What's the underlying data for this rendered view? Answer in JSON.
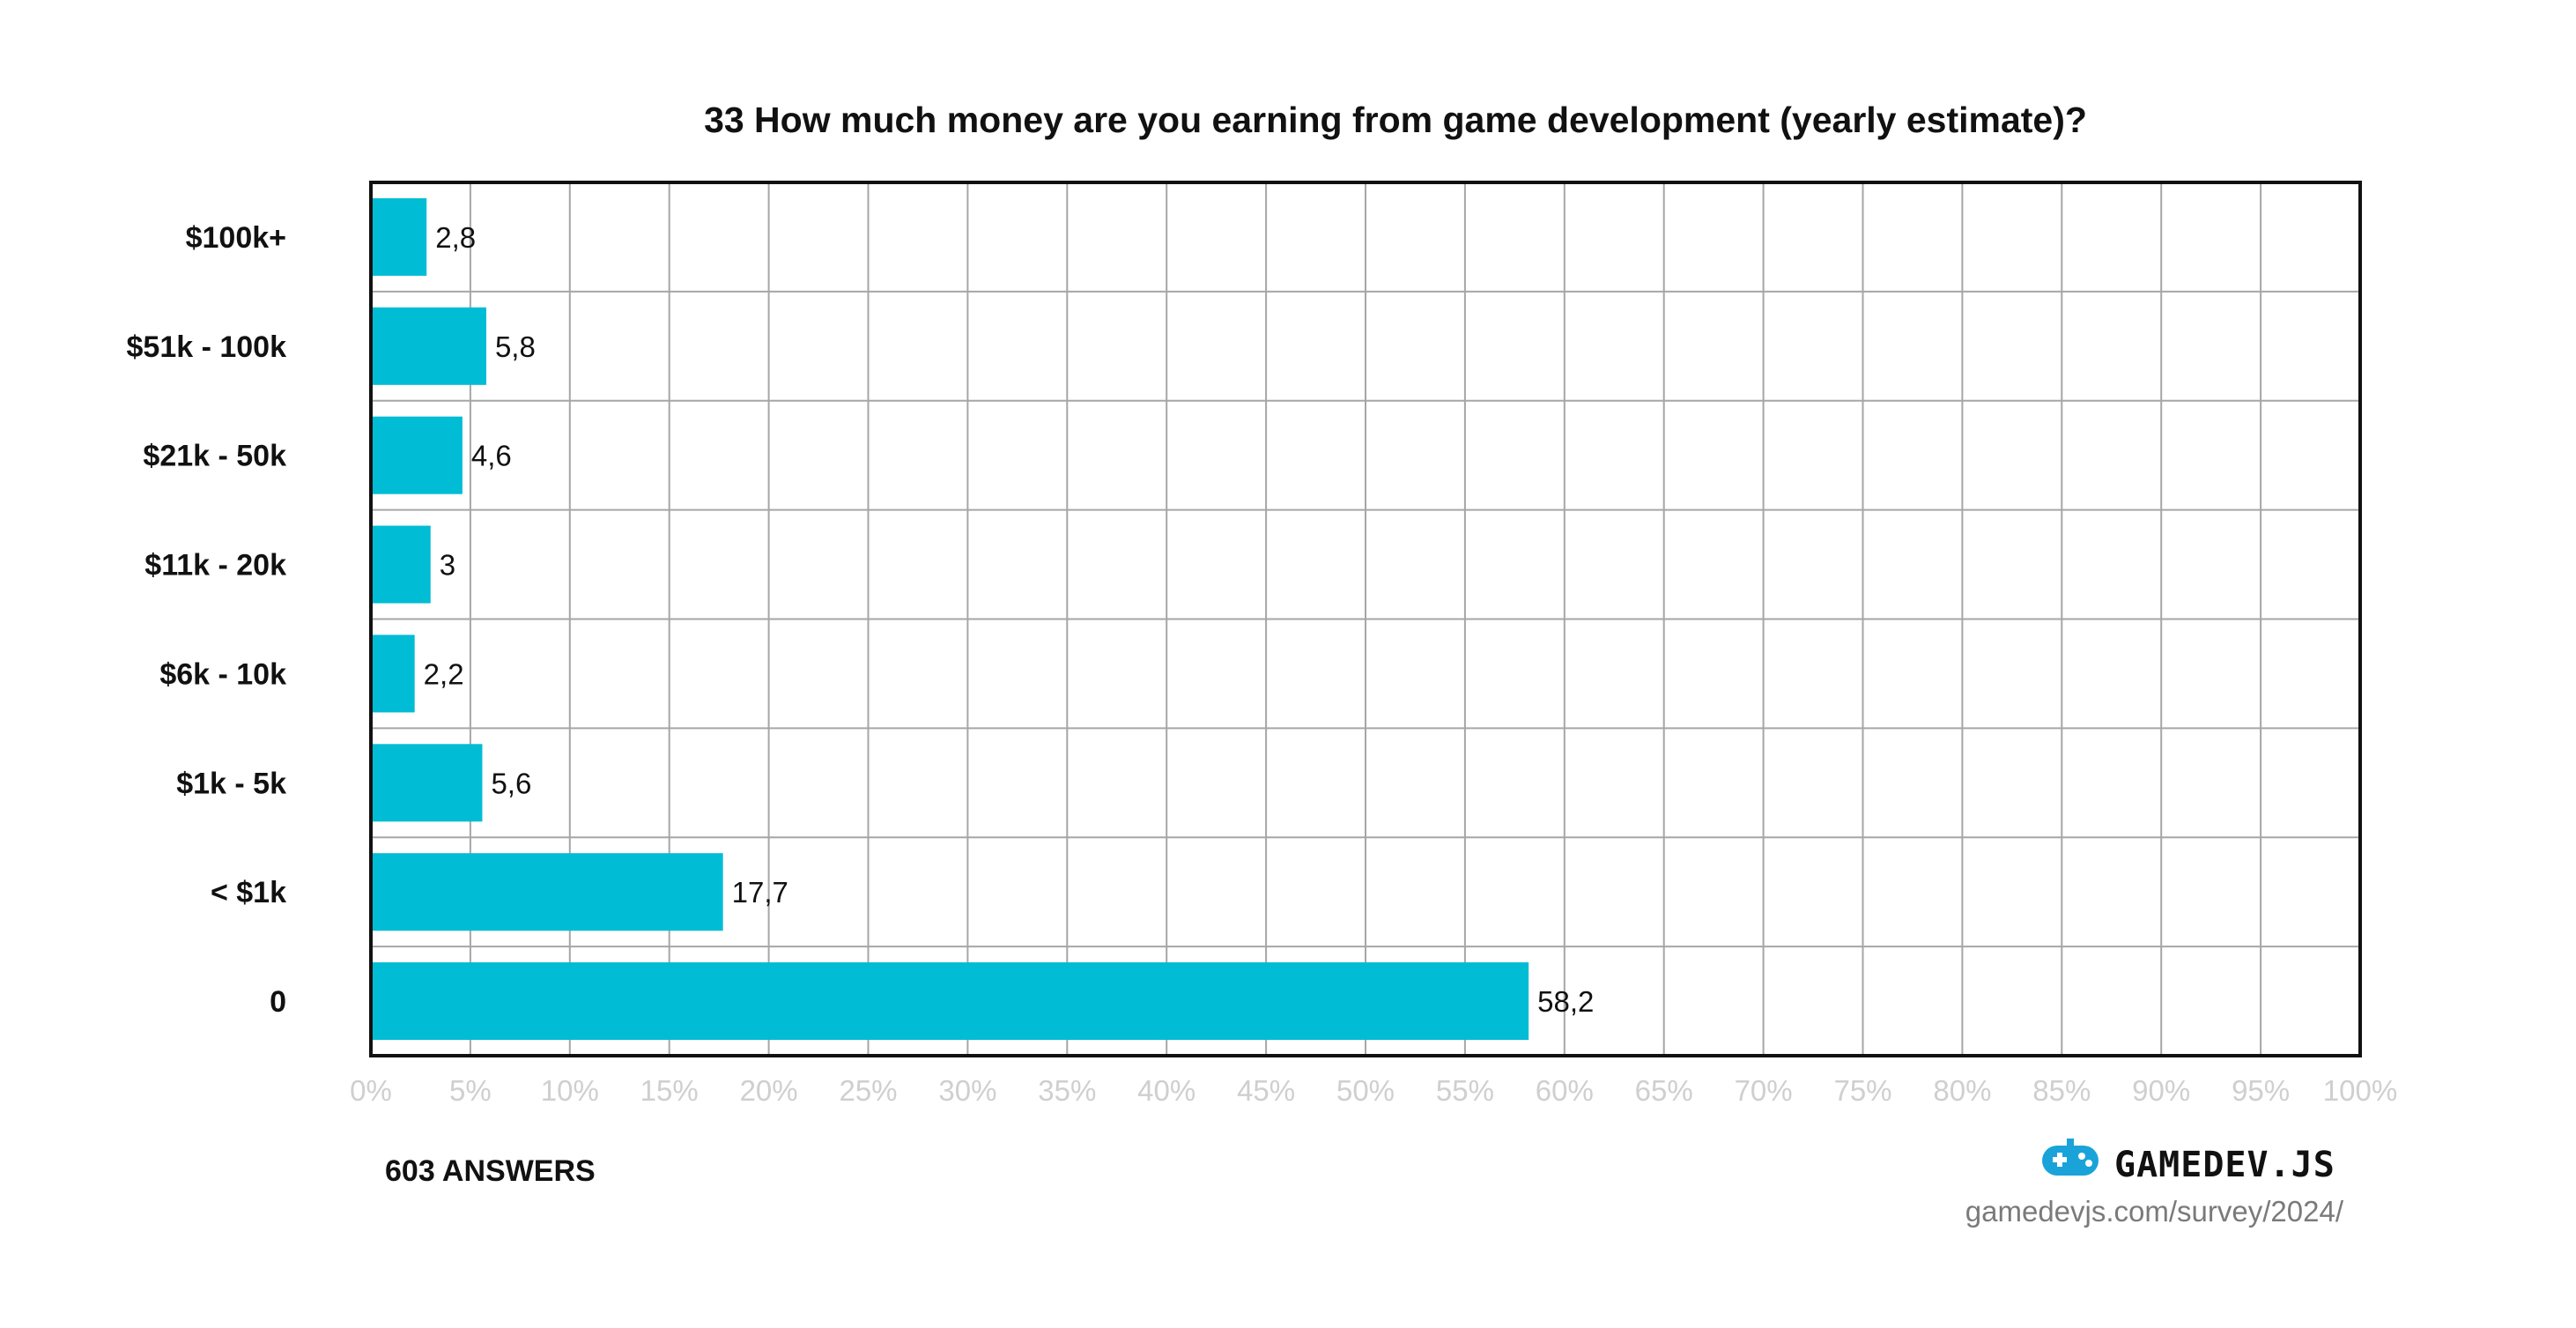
{
  "colors": {
    "bar": "#00bcd4",
    "grid": "#a6a6a6",
    "frame": "#111111",
    "tick_text": "#cfcfcf",
    "brand_icon": "#1aa3d9"
  },
  "chart_data": {
    "type": "bar",
    "orientation": "horizontal",
    "title": "33 How much money are you earning from game development (yearly estimate)?",
    "categories": [
      "$100k+",
      "$51k - 100k",
      "$21k - 50k",
      "$11k - 20k",
      "$6k - 10k",
      "$1k - 5k",
      "< $1k",
      "0"
    ],
    "values": [
      2.8,
      5.8,
      4.6,
      3,
      2.2,
      5.6,
      17.7,
      58.2
    ],
    "value_labels": [
      "2,8",
      "5,8",
      "4,6",
      "3",
      "2,2",
      "5,6",
      "17,7",
      "58,2"
    ],
    "xlim": [
      0,
      100
    ],
    "xticks": [
      "0%",
      "5%",
      "10%",
      "15%",
      "20%",
      "25%",
      "30%",
      "35%",
      "40%",
      "45%",
      "50%",
      "55%",
      "60%",
      "65%",
      "70%",
      "75%",
      "80%",
      "85%",
      "90%",
      "95%",
      "100%"
    ],
    "grid": true,
    "legend": "none"
  },
  "footer": {
    "answers": "603 ANSWERS",
    "brand_name": "GAMEDEV.JS",
    "brand_icon": "gamepad-icon",
    "brand_url": "gamedevjs.com/survey/2024/"
  }
}
